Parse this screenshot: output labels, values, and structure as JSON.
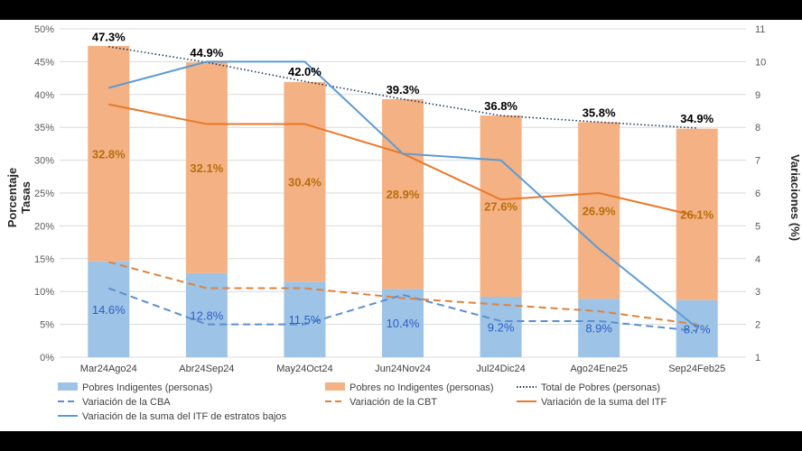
{
  "chart_data": {
    "type": "bar",
    "categories": [
      "Mar24Ago24",
      "Abr24Sep24",
      "May24Oct24",
      "Jun24Nov24",
      "Jul24Dic24",
      "Ago24Ene25",
      "Sep24Feb25"
    ],
    "left_axis": {
      "title_line1": "Porcentaje",
      "title_line2": "Tasas",
      "ylim": [
        0,
        50
      ],
      "ticks": [
        "0%",
        "5%",
        "10%",
        "15%",
        "20%",
        "25%",
        "30%",
        "35%",
        "40%",
        "45%",
        "50%"
      ]
    },
    "right_axis": {
      "title": "Variaciones (%)",
      "ylim": [
        1,
        11
      ],
      "ticks": [
        "1",
        "2",
        "3",
        "4",
        "5",
        "6",
        "7",
        "8",
        "9",
        "10",
        "11"
      ]
    },
    "bar_series": [
      {
        "name": "Pobres Indigentes (personas)",
        "color": "#9dc3e6",
        "label_color": "#2e5fc4",
        "values": [
          14.6,
          12.8,
          11.5,
          10.4,
          9.2,
          8.9,
          8.7
        ],
        "labels": [
          "14.6%",
          "12.8%",
          "11.5%",
          "10.4%",
          "9.2%",
          "8.9%",
          "8.7%"
        ]
      },
      {
        "name": "Pobres no Indigentes (personas)",
        "color": "#f4b183",
        "label_color": "#b86e0b",
        "values": [
          32.8,
          32.1,
          30.4,
          28.9,
          27.6,
          26.9,
          26.1
        ],
        "labels": [
          "32.8%",
          "32.1%",
          "30.4%",
          "28.9%",
          "27.6%",
          "26.9%",
          "26.1%"
        ]
      }
    ],
    "total_series": {
      "name": "Total de Pobres (personas)",
      "color": "#1f3864",
      "values": [
        47.3,
        44.9,
        42.0,
        39.3,
        36.8,
        35.8,
        34.9
      ],
      "labels": [
        "47.3%",
        "44.9%",
        "42.0%",
        "39.3%",
        "36.8%",
        "35.8%",
        "34.9%"
      ]
    },
    "right_series": [
      {
        "name": "Variación de la CBA",
        "color": "#5b8fd0",
        "dash": "dash",
        "values": [
          3.1,
          2.0,
          2.0,
          2.9,
          2.1,
          2.1,
          1.8
        ]
      },
      {
        "name": "Variación de la CBT",
        "color": "#e0823c",
        "dash": "dash",
        "values": [
          3.9,
          3.1,
          3.1,
          2.8,
          2.6,
          2.4,
          2.0
        ]
      },
      {
        "name": "Variación de la suma del ITF",
        "color": "#e8792a",
        "dash": "solid",
        "values": [
          8.7,
          8.1,
          8.1,
          7.2,
          5.8,
          6.0,
          5.3
        ]
      },
      {
        "name": "Variación de la suma del ITF de estratos bajos",
        "color": "#5b9bd5",
        "dash": "solid",
        "values": [
          9.2,
          10.0,
          10.0,
          7.2,
          7.0,
          4.3,
          1.9
        ]
      }
    ]
  }
}
